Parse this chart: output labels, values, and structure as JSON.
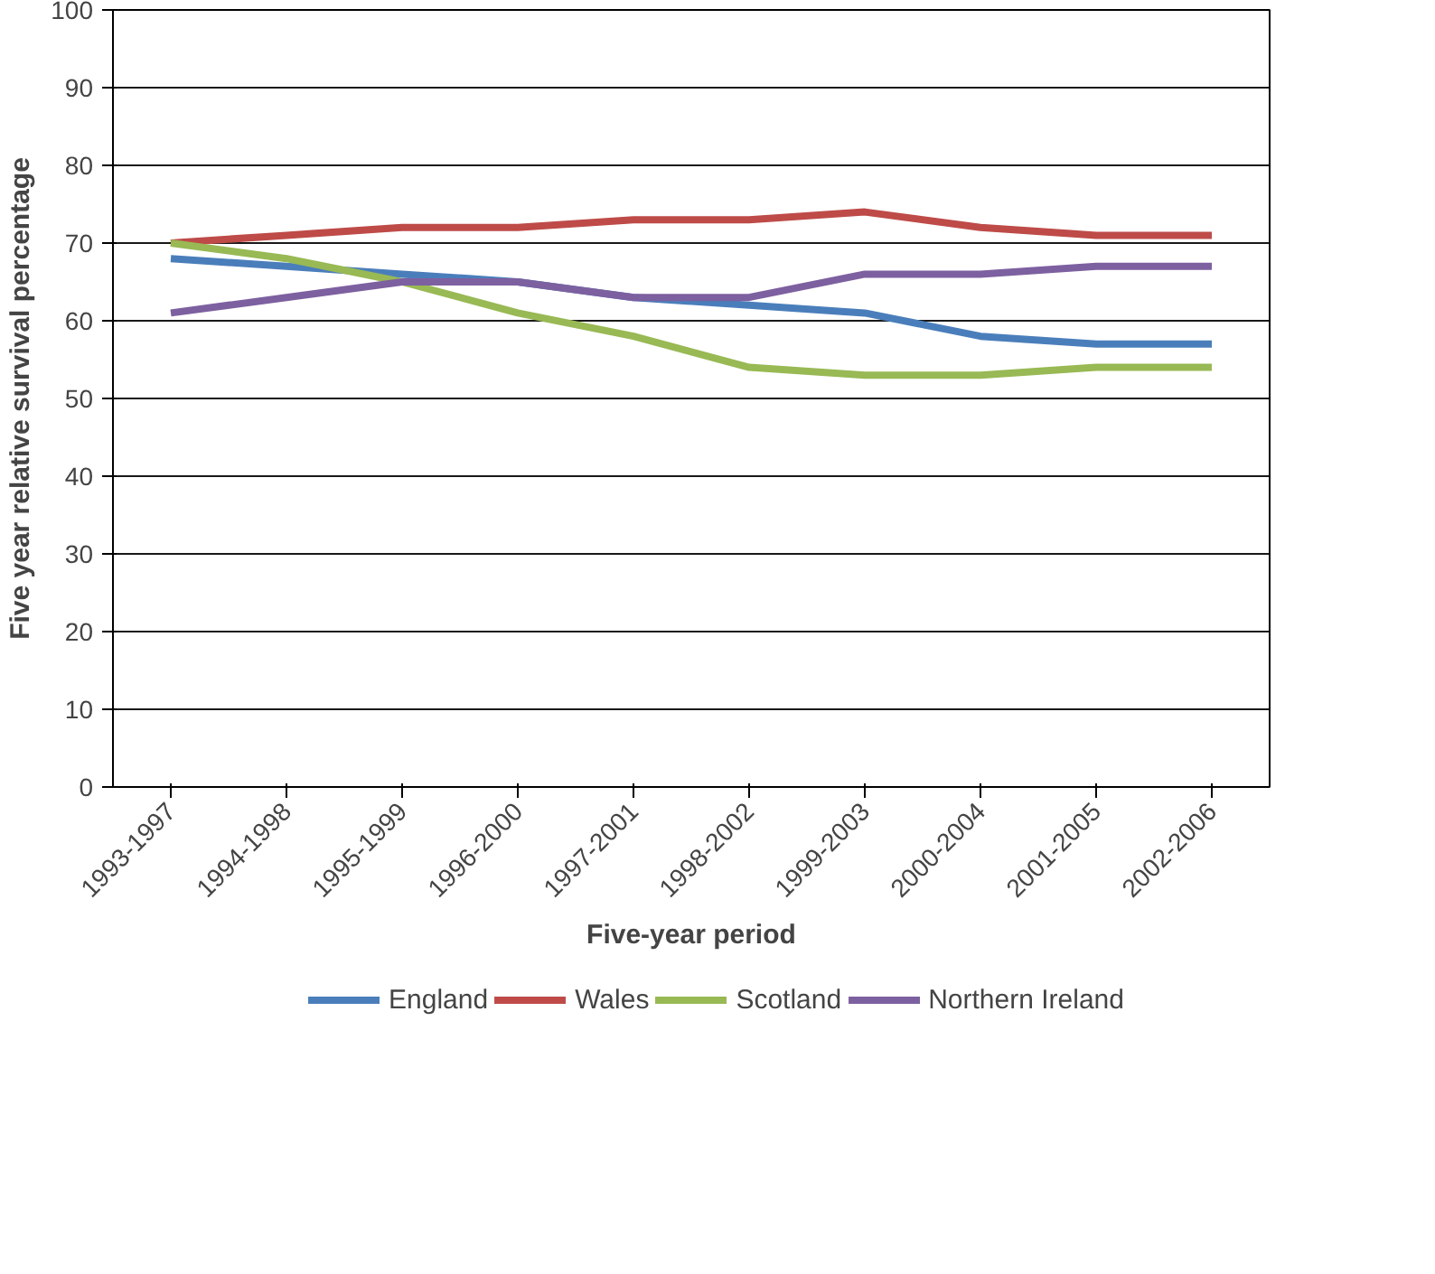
{
  "chart_data": {
    "type": "line",
    "xlabel": "Five-year period",
    "ylabel": "Five year relative survival percentage",
    "categories": [
      "1993-1997",
      "1994-1998",
      "1995-1999",
      "1996-2000",
      "1997-2001",
      "1998-2002",
      "1999-2003",
      "2000-2004",
      "2001-2005",
      "2002-2006"
    ],
    "series": [
      {
        "name": "England",
        "color": "#4a7ebb",
        "values": [
          68,
          67,
          66,
          65,
          63,
          62,
          61,
          58,
          57,
          57
        ]
      },
      {
        "name": "Wales",
        "color": "#be4b48",
        "values": [
          70,
          71,
          72,
          72,
          73,
          73,
          74,
          72,
          71,
          71
        ]
      },
      {
        "name": "Scotland",
        "color": "#98b954",
        "values": [
          70,
          68,
          65,
          61,
          58,
          54,
          53,
          53,
          54,
          54
        ]
      },
      {
        "name": "Northern Ireland",
        "color": "#7d60a0",
        "values": [
          61,
          63,
          65,
          65,
          63,
          63,
          66,
          66,
          67,
          67
        ]
      }
    ],
    "ylim": [
      0,
      100
    ],
    "yticks": [
      0,
      10,
      20,
      30,
      40,
      50,
      60,
      70,
      80,
      90,
      100
    ],
    "grid": "y",
    "legend": "bottom",
    "marker": "none",
    "line_style": "solid"
  }
}
